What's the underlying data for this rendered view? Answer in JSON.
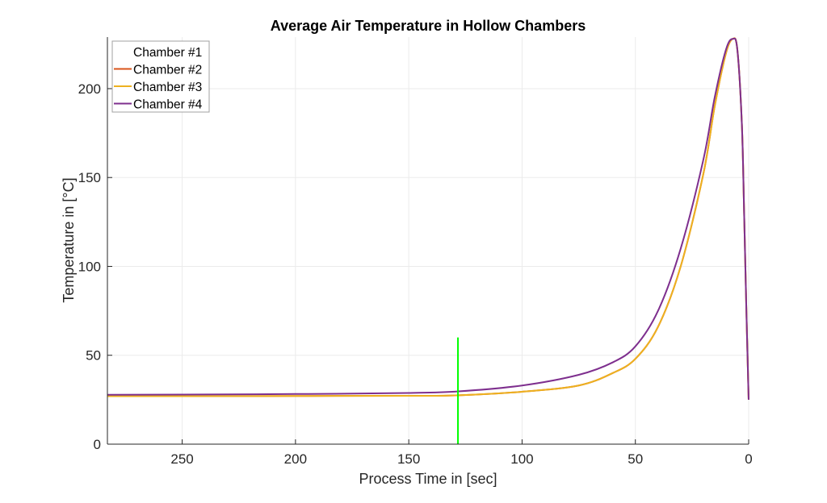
{
  "chart_data": {
    "type": "line",
    "title": "Average Air Temperature in Hollow Chambers",
    "xlabel": "Process Time in [sec]",
    "ylabel": "Temperature in [°C]",
    "xlim": [
      0,
      283
    ],
    "x_reversed": true,
    "ylim": [
      0,
      229
    ],
    "xticks": [
      250,
      200,
      150,
      100,
      50,
      0
    ],
    "yticks": [
      0,
      50,
      100,
      150,
      200
    ],
    "grid": true,
    "legend_position": "top-left",
    "x": [
      283,
      250,
      200,
      150,
      128,
      100,
      75,
      60,
      50,
      40,
      30,
      20,
      15,
      10,
      7,
      5,
      3,
      2,
      1,
      0
    ],
    "series": [
      {
        "name": "Chamber #1",
        "color": "#ffffff",
        "values": [
          27,
          27,
          27.1,
          27.2,
          27.5,
          29.5,
          33,
          40,
          48,
          66,
          100,
          152,
          190,
          220,
          228,
          222,
          180,
          130,
          75,
          25
        ]
      },
      {
        "name": "Chamber #2",
        "color": "#d95319",
        "values": [
          27,
          27,
          27.1,
          27.2,
          27.5,
          29.5,
          33,
          40,
          48,
          66,
          100,
          152,
          190,
          220,
          228,
          222,
          180,
          130,
          75,
          25
        ]
      },
      {
        "name": "Chamber #3",
        "color": "#edb120",
        "values": [
          27,
          27,
          27.1,
          27.2,
          27.5,
          29.5,
          33,
          40,
          48,
          66,
          100,
          152,
          190,
          220,
          228,
          222,
          180,
          130,
          75,
          25
        ]
      },
      {
        "name": "Chamber #4",
        "color": "#7e2f8e",
        "values": [
          27.8,
          27.9,
          28.2,
          28.8,
          29.7,
          33,
          39,
          46,
          55,
          75,
          110,
          160,
          195,
          222,
          228,
          222,
          180,
          130,
          75,
          25
        ]
      }
    ],
    "marker_line": {
      "x": 128.3,
      "y": [
        0,
        60
      ],
      "color": "#00ff00"
    }
  }
}
